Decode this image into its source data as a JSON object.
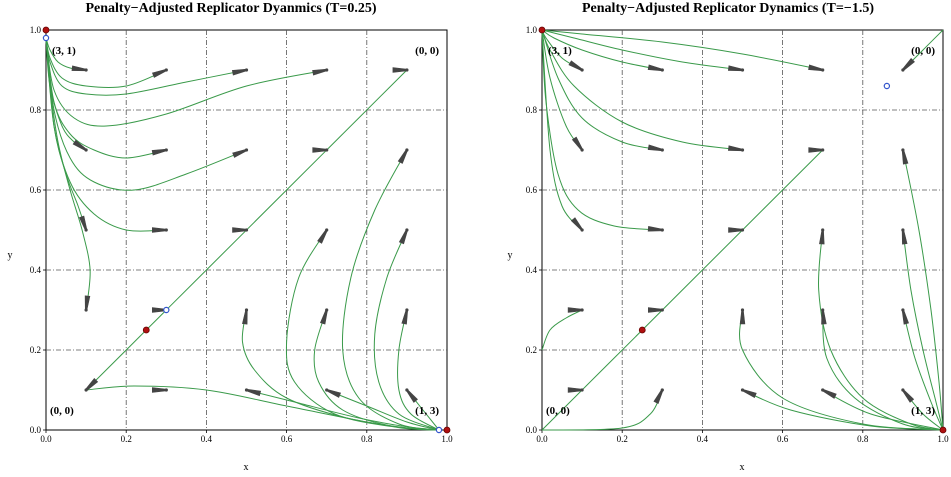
{
  "colors": {
    "trajectory": "#3a9a4a",
    "arrow": "#444444",
    "stable_fill": "#b01010",
    "unstable_fill": "#ffffff",
    "unstable_stroke": "#3355cc",
    "grid": "#555555"
  },
  "chart_data": [
    {
      "type": "scatter",
      "title": "Penalty−Adjusted Replicator Dyanmics (T=0.25)",
      "xlabel": "x",
      "ylabel": "y",
      "xlim": [
        0,
        1
      ],
      "ylim": [
        0,
        1
      ],
      "x_ticks": [
        "0.0",
        "0.2",
        "0.4",
        "0.6",
        "0.8",
        "1.0"
      ],
      "y_ticks": [
        "0.0",
        "0.2",
        "0.4",
        "0.6",
        "0.8",
        "1.0"
      ],
      "grid": true,
      "corner_labels": [
        {
          "text": "(3, 1)",
          "corner": "top-left"
        },
        {
          "text": "(0, 0)",
          "corner": "top-right"
        },
        {
          "text": "(0, 0)",
          "corner": "bottom-left"
        },
        {
          "text": "(1, 3)",
          "corner": "bottom-right"
        }
      ],
      "stable_points": [
        [
          0,
          1
        ],
        [
          0.25,
          0.25
        ],
        [
          1,
          0
        ]
      ],
      "unstable_points": [
        [
          0,
          0.98
        ],
        [
          0.3,
          0.3
        ],
        [
          0.98,
          0
        ]
      ],
      "arrows": [
        [
          0.1,
          0.9
        ],
        [
          0.3,
          0.9
        ],
        [
          0.5,
          0.9
        ],
        [
          0.7,
          0.9
        ],
        [
          0.9,
          0.9
        ],
        [
          0.1,
          0.7
        ],
        [
          0.3,
          0.7
        ],
        [
          0.5,
          0.7
        ],
        [
          0.7,
          0.7
        ],
        [
          0.9,
          0.7
        ],
        [
          0.1,
          0.5
        ],
        [
          0.3,
          0.5
        ],
        [
          0.5,
          0.5
        ],
        [
          0.7,
          0.5
        ],
        [
          0.9,
          0.5
        ],
        [
          0.1,
          0.3
        ],
        [
          0.3,
          0.3
        ],
        [
          0.5,
          0.3
        ],
        [
          0.7,
          0.3
        ],
        [
          0.9,
          0.3
        ],
        [
          0.1,
          0.1
        ],
        [
          0.3,
          0.1
        ],
        [
          0.5,
          0.1
        ],
        [
          0.7,
          0.1
        ],
        [
          0.9,
          0.1
        ]
      ],
      "trajectories": [
        [
          [
            0.1,
            0.9
          ],
          [
            0.06,
            0.905
          ],
          [
            0.03,
            0.92
          ],
          [
            0.01,
            0.95
          ],
          [
            0,
            0.98
          ]
        ],
        [
          [
            0.3,
            0.9
          ],
          [
            0.2,
            0.86
          ],
          [
            0.1,
            0.86
          ],
          [
            0.04,
            0.88
          ],
          [
            0.01,
            0.93
          ],
          [
            0,
            0.98
          ]
        ],
        [
          [
            0.5,
            0.9
          ],
          [
            0.35,
            0.87
          ],
          [
            0.2,
            0.84
          ],
          [
            0.1,
            0.84
          ],
          [
            0.04,
            0.86
          ],
          [
            0.01,
            0.92
          ],
          [
            0,
            0.98
          ]
        ],
        [
          [
            0.7,
            0.9
          ],
          [
            0.5,
            0.86
          ],
          [
            0.3,
            0.79
          ],
          [
            0.15,
            0.76
          ],
          [
            0.07,
            0.78
          ],
          [
            0.02,
            0.85
          ],
          [
            0,
            0.98
          ]
        ],
        [
          [
            0.3,
            0.7
          ],
          [
            0.2,
            0.68
          ],
          [
            0.12,
            0.7
          ],
          [
            0.06,
            0.74
          ],
          [
            0.02,
            0.82
          ],
          [
            0,
            0.98
          ]
        ],
        [
          [
            0.5,
            0.7
          ],
          [
            0.35,
            0.64
          ],
          [
            0.22,
            0.6
          ],
          [
            0.12,
            0.62
          ],
          [
            0.06,
            0.68
          ],
          [
            0.02,
            0.8
          ],
          [
            0,
            0.98
          ]
        ],
        [
          [
            0.3,
            0.5
          ],
          [
            0.2,
            0.5
          ],
          [
            0.12,
            0.54
          ],
          [
            0.06,
            0.62
          ],
          [
            0.02,
            0.76
          ],
          [
            0,
            0.98
          ]
        ],
        [
          [
            0.1,
            0.3
          ],
          [
            0.11,
            0.4
          ],
          [
            0.09,
            0.5
          ],
          [
            0.06,
            0.6
          ],
          [
            0.03,
            0.72
          ],
          [
            0.01,
            0.86
          ],
          [
            0,
            0.98
          ]
        ],
        [
          [
            0.1,
            0.5
          ],
          [
            0.08,
            0.56
          ],
          [
            0.05,
            0.64
          ],
          [
            0.02,
            0.76
          ],
          [
            0,
            0.98
          ]
        ],
        [
          [
            0.1,
            0.7
          ],
          [
            0.07,
            0.72
          ],
          [
            0.04,
            0.76
          ],
          [
            0.01,
            0.86
          ],
          [
            0,
            0.98
          ]
        ],
        [
          [
            0.1,
            0.1
          ],
          [
            0.3,
            0.3
          ],
          [
            0.5,
            0.5
          ],
          [
            0.7,
            0.7
          ],
          [
            0.9,
            0.9
          ]
        ],
        [
          [
            0.1,
            0.1
          ],
          [
            0.22,
            0.11
          ],
          [
            0.4,
            0.1
          ],
          [
            0.6,
            0.06
          ],
          [
            0.8,
            0.02
          ],
          [
            0.9,
            0.005
          ],
          [
            0.98,
            0
          ]
        ],
        [
          [
            0.5,
            0.3
          ],
          [
            0.49,
            0.22
          ],
          [
            0.52,
            0.15
          ],
          [
            0.6,
            0.08
          ],
          [
            0.75,
            0.03
          ],
          [
            0.9,
            0.005
          ],
          [
            0.98,
            0
          ]
        ],
        [
          [
            0.7,
            0.5
          ],
          [
            0.63,
            0.38
          ],
          [
            0.6,
            0.22
          ],
          [
            0.62,
            0.12
          ],
          [
            0.72,
            0.04
          ],
          [
            0.88,
            0.006
          ],
          [
            0.98,
            0
          ]
        ],
        [
          [
            0.7,
            0.3
          ],
          [
            0.67,
            0.2
          ],
          [
            0.68,
            0.12
          ],
          [
            0.74,
            0.05
          ],
          [
            0.86,
            0.01
          ],
          [
            0.98,
            0
          ]
        ],
        [
          [
            0.9,
            0.7
          ],
          [
            0.82,
            0.55
          ],
          [
            0.76,
            0.38
          ],
          [
            0.74,
            0.2
          ],
          [
            0.78,
            0.08
          ],
          [
            0.88,
            0.015
          ],
          [
            0.98,
            0
          ]
        ],
        [
          [
            0.9,
            0.5
          ],
          [
            0.85,
            0.38
          ],
          [
            0.82,
            0.24
          ],
          [
            0.83,
            0.12
          ],
          [
            0.88,
            0.04
          ],
          [
            0.98,
            0
          ]
        ],
        [
          [
            0.9,
            0.3
          ],
          [
            0.88,
            0.2
          ],
          [
            0.88,
            0.1
          ],
          [
            0.91,
            0.04
          ],
          [
            0.98,
            0
          ]
        ],
        [
          [
            0.5,
            0.1
          ],
          [
            0.62,
            0.07
          ],
          [
            0.78,
            0.03
          ],
          [
            0.9,
            0.008
          ],
          [
            0.98,
            0
          ]
        ],
        [
          [
            0.7,
            0.1
          ],
          [
            0.8,
            0.06
          ],
          [
            0.9,
            0.02
          ],
          [
            0.98,
            0
          ]
        ],
        [
          [
            0.9,
            0.1
          ],
          [
            0.94,
            0.05
          ],
          [
            0.98,
            0
          ]
        ]
      ]
    },
    {
      "type": "scatter",
      "title": "Penalty−Adjusted Replicator Dynamics (T=−1.5)",
      "xlabel": "x",
      "ylabel": "y",
      "xlim": [
        0,
        1
      ],
      "ylim": [
        0,
        1
      ],
      "x_ticks": [
        "0.0",
        "0.2",
        "0.4",
        "0.6",
        "0.8",
        "1.0"
      ],
      "y_ticks": [
        "0.0",
        "0.2",
        "0.4",
        "0.6",
        "0.8",
        "1.0"
      ],
      "grid": true,
      "corner_labels": [
        {
          "text": "(3, 1)",
          "corner": "top-left"
        },
        {
          "text": "(0, 0)",
          "corner": "top-right"
        },
        {
          "text": "(0, 0)",
          "corner": "bottom-left"
        },
        {
          "text": "(1, 3)",
          "corner": "bottom-right"
        }
      ],
      "stable_points": [
        [
          0,
          1
        ],
        [
          0.25,
          0.25
        ],
        [
          1,
          0
        ]
      ],
      "unstable_points": [
        [
          0.86,
          0.86
        ]
      ],
      "arrows": [
        [
          0.1,
          0.9
        ],
        [
          0.3,
          0.9
        ],
        [
          0.5,
          0.9
        ],
        [
          0.7,
          0.9
        ],
        [
          0.9,
          0.9
        ],
        [
          0.1,
          0.7
        ],
        [
          0.3,
          0.7
        ],
        [
          0.5,
          0.7
        ],
        [
          0.7,
          0.7
        ],
        [
          0.9,
          0.7
        ],
        [
          0.1,
          0.5
        ],
        [
          0.3,
          0.5
        ],
        [
          0.5,
          0.5
        ],
        [
          0.7,
          0.5
        ],
        [
          0.9,
          0.5
        ],
        [
          0.1,
          0.3
        ],
        [
          0.3,
          0.3
        ],
        [
          0.5,
          0.3
        ],
        [
          0.7,
          0.3
        ],
        [
          0.9,
          0.3
        ],
        [
          0.1,
          0.1
        ],
        [
          0.3,
          0.1
        ],
        [
          0.5,
          0.1
        ],
        [
          0.7,
          0.1
        ],
        [
          0.9,
          0.1
        ]
      ],
      "trajectories": [
        [
          [
            0.7,
            0.9
          ],
          [
            0.5,
            0.94
          ],
          [
            0.3,
            0.97
          ],
          [
            0.1,
            0.99
          ],
          [
            0,
            1
          ]
        ],
        [
          [
            0.5,
            0.9
          ],
          [
            0.35,
            0.92
          ],
          [
            0.2,
            0.95
          ],
          [
            0.08,
            0.98
          ],
          [
            0,
            1
          ]
        ],
        [
          [
            0.3,
            0.9
          ],
          [
            0.2,
            0.92
          ],
          [
            0.1,
            0.95
          ],
          [
            0.03,
            0.98
          ],
          [
            0,
            1
          ]
        ],
        [
          [
            0.5,
            0.7
          ],
          [
            0.35,
            0.72
          ],
          [
            0.2,
            0.77
          ],
          [
            0.08,
            0.86
          ],
          [
            0.02,
            0.95
          ],
          [
            0,
            1
          ]
        ],
        [
          [
            0.3,
            0.7
          ],
          [
            0.2,
            0.72
          ],
          [
            0.1,
            0.78
          ],
          [
            0.04,
            0.88
          ],
          [
            0,
            1
          ]
        ],
        [
          [
            0.1,
            0.9
          ],
          [
            0.05,
            0.93
          ],
          [
            0.01,
            0.98
          ],
          [
            0,
            1
          ]
        ],
        [
          [
            0.1,
            0.7
          ],
          [
            0.06,
            0.76
          ],
          [
            0.02,
            0.88
          ],
          [
            0,
            1
          ]
        ],
        [
          [
            0.3,
            0.5
          ],
          [
            0.18,
            0.51
          ],
          [
            0.09,
            0.55
          ],
          [
            0.04,
            0.64
          ],
          [
            0.01,
            0.82
          ],
          [
            0,
            1
          ]
        ],
        [
          [
            0.1,
            0.5
          ],
          [
            0.05,
            0.56
          ],
          [
            0.02,
            0.7
          ],
          [
            0,
            1
          ]
        ],
        [
          [
            0,
            0.2
          ],
          [
            0.02,
            0.25
          ],
          [
            0.06,
            0.28
          ],
          [
            0.1,
            0.3
          ]
        ],
        [
          [
            0,
            0
          ],
          [
            0.25,
            0.25
          ],
          [
            0.5,
            0.5
          ],
          [
            0.7,
            0.7
          ]
        ],
        [
          [
            0.3,
            0.1
          ],
          [
            0.27,
            0.04
          ],
          [
            0.2,
            0.005
          ],
          [
            0,
            0
          ]
        ],
        [
          [
            0.5,
            0.3
          ],
          [
            0.5,
            0.2
          ],
          [
            0.6,
            0.08
          ],
          [
            0.8,
            0.015
          ],
          [
            1,
            0
          ]
        ],
        [
          [
            0.7,
            0.5
          ],
          [
            0.69,
            0.35
          ],
          [
            0.72,
            0.2
          ],
          [
            0.8,
            0.08
          ],
          [
            0.92,
            0.015
          ],
          [
            1,
            0
          ]
        ],
        [
          [
            0.7,
            0.3
          ],
          [
            0.71,
            0.18
          ],
          [
            0.78,
            0.08
          ],
          [
            0.9,
            0.015
          ],
          [
            1,
            0
          ]
        ],
        [
          [
            0.9,
            0.7
          ],
          [
            0.94,
            0.5
          ],
          [
            0.97,
            0.3
          ],
          [
            0.99,
            0.12
          ],
          [
            1,
            0
          ]
        ],
        [
          [
            0.9,
            0.5
          ],
          [
            0.92,
            0.35
          ],
          [
            0.95,
            0.2
          ],
          [
            0.98,
            0.08
          ],
          [
            1,
            0
          ]
        ],
        [
          [
            0.9,
            0.3
          ],
          [
            0.93,
            0.18
          ],
          [
            0.97,
            0.07
          ],
          [
            1,
            0
          ]
        ],
        [
          [
            0.9,
            0.9
          ],
          [
            0.95,
            0.95
          ],
          [
            1,
            1
          ]
        ],
        [
          [
            0.5,
            0.1
          ],
          [
            0.62,
            0.05
          ],
          [
            0.82,
            0.01
          ],
          [
            1,
            0
          ]
        ],
        [
          [
            0.7,
            0.1
          ],
          [
            0.82,
            0.04
          ],
          [
            1,
            0
          ]
        ],
        [
          [
            0.9,
            0.1
          ],
          [
            0.95,
            0.04
          ],
          [
            1,
            0
          ]
        ]
      ]
    }
  ]
}
